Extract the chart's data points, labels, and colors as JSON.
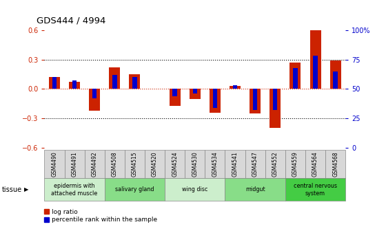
{
  "title": "GDS444 / 4994",
  "samples": [
    "GSM4490",
    "GSM4491",
    "GSM4492",
    "GSM4508",
    "GSM4515",
    "GSM4520",
    "GSM4524",
    "GSM4530",
    "GSM4534",
    "GSM4541",
    "GSM4547",
    "GSM4552",
    "GSM4559",
    "GSM4564",
    "GSM4568"
  ],
  "log_ratio": [
    0.12,
    0.07,
    -0.22,
    0.22,
    0.15,
    0.0,
    -0.17,
    -0.1,
    -0.24,
    0.03,
    -0.25,
    -0.4,
    0.27,
    0.6,
    0.29
  ],
  "percentile": [
    60,
    57,
    42,
    62,
    60,
    50,
    44,
    46,
    34,
    53,
    32,
    32,
    68,
    78,
    65
  ],
  "ylim_left": [
    -0.6,
    0.6
  ],
  "ylim_right": [
    0,
    100
  ],
  "yticks_left": [
    -0.6,
    -0.3,
    0.0,
    0.3,
    0.6
  ],
  "yticks_right": [
    0,
    25,
    50,
    75,
    100
  ],
  "ytick_labels_right": [
    "0",
    "25",
    "50",
    "75",
    "100%"
  ],
  "red_color": "#cc2200",
  "blue_color": "#0000cc",
  "tissue_groups": [
    {
      "label": "epidermis with\nattached muscle",
      "start": 0,
      "end": 2,
      "color": "#cceecc"
    },
    {
      "label": "salivary gland",
      "start": 3,
      "end": 5,
      "color": "#88dd88"
    },
    {
      "label": "wing disc",
      "start": 6,
      "end": 8,
      "color": "#cceecc"
    },
    {
      "label": "midgut",
      "start": 9,
      "end": 11,
      "color": "#88dd88"
    },
    {
      "label": "central nervous\nsystem",
      "start": 12,
      "end": 14,
      "color": "#44cc44"
    }
  ],
  "sample_box_color": "#d8d8d8",
  "sample_box_edge": "#888888",
  "legend_red_label": "log ratio",
  "legend_blue_label": "percentile rank within the sample",
  "background_color": "#ffffff",
  "tick_label_color_left": "#cc2200",
  "tick_label_color_right": "#0000cc"
}
